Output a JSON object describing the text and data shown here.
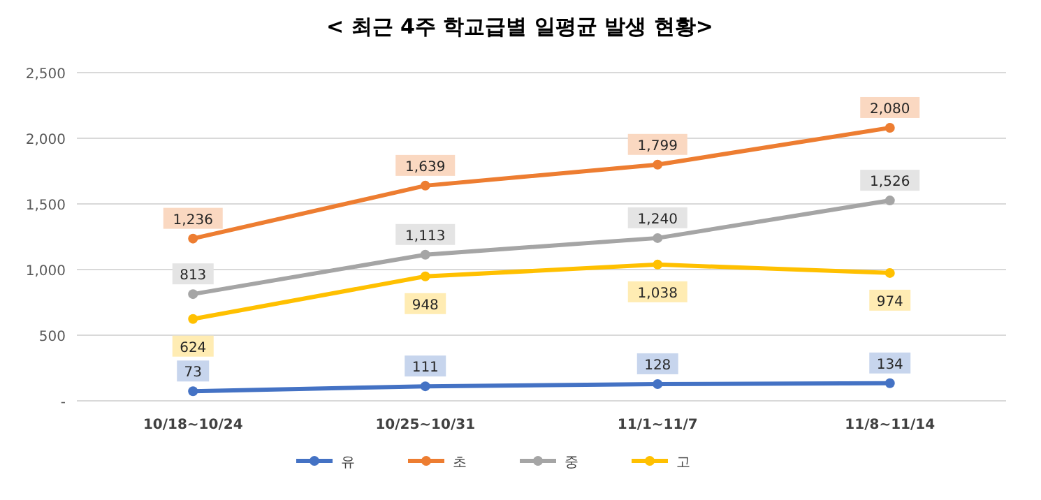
{
  "chart_data": {
    "type": "line",
    "title": "< 최근 4주 학교급별 일평균 발생 현황>",
    "categories": [
      "10/18~10/24",
      "10/25~10/31",
      "11/1~11/7",
      "11/8~11/14"
    ],
    "series": [
      {
        "name": "유",
        "color": "#4472c4",
        "values": [
          73,
          111,
          128,
          134
        ],
        "value_labels": [
          "73",
          "111",
          "128",
          "134"
        ]
      },
      {
        "name": "초",
        "color": "#ed7d31",
        "values": [
          1236,
          1639,
          1799,
          2080
        ],
        "value_labels": [
          "1,236",
          "1,639",
          "1,799",
          "2,080"
        ]
      },
      {
        "name": "중",
        "color": "#a5a5a5",
        "values": [
          813,
          1113,
          1240,
          1526
        ],
        "value_labels": [
          "813",
          "1,113",
          "1,240",
          "1,526"
        ]
      },
      {
        "name": "고",
        "color": "#ffc000",
        "values": [
          624,
          948,
          1038,
          974
        ],
        "value_labels": [
          "624",
          "948",
          "1,038",
          "974"
        ]
      }
    ],
    "ylim": [
      0,
      2500
    ],
    "yticks": [
      {
        "value": 0,
        "label": "-"
      },
      {
        "value": 500,
        "label": "500"
      },
      {
        "value": 1000,
        "label": "1,000"
      },
      {
        "value": 1500,
        "label": "1,500"
      },
      {
        "value": 2000,
        "label": "2,000"
      },
      {
        "value": 2500,
        "label": "2,500"
      }
    ],
    "grid": "y",
    "legend": "bottom",
    "marker": "circle",
    "line_style": "solid"
  }
}
